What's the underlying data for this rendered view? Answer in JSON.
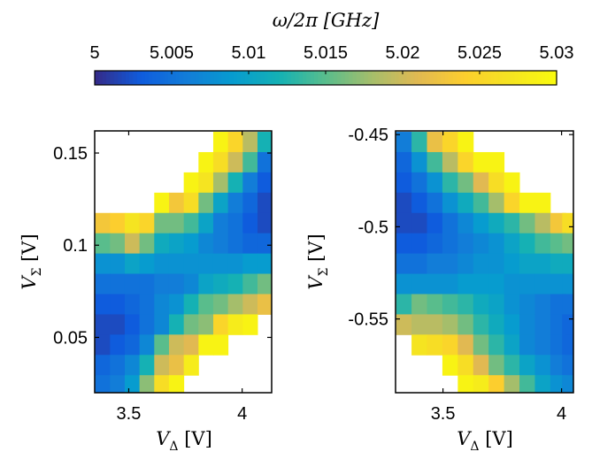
{
  "chart_data": {
    "type": "heatmap",
    "colorbar": {
      "label": "ω/2π [GHz]",
      "ticks": [
        "5",
        "5.005",
        "5.01",
        "5.015",
        "5.02",
        "5.025",
        "5.03"
      ],
      "range": [
        5.0,
        5.03
      ],
      "colormap": "parula"
    },
    "panels": [
      {
        "xlabel": "V_Δ [V]",
        "ylabel": "V_Σ [V]",
        "x_ticks": [
          "3.5",
          "4"
        ],
        "y_ticks": [
          "0.05",
          "0.1",
          "0.15"
        ],
        "x_range": [
          3.35,
          4.13
        ],
        "y_range": [
          0.02,
          0.162
        ],
        "x_centers": [
          3.385,
          3.45,
          3.515,
          3.58,
          3.645,
          3.71,
          3.775,
          3.84,
          3.905,
          3.97,
          4.035,
          4.1
        ],
        "y_centers": [
          0.156,
          0.145,
          0.134,
          0.123,
          0.112,
          0.101,
          0.09,
          0.079,
          0.068,
          0.057,
          0.046,
          0.035,
          0.024
        ],
        "z": [
          [
            null,
            null,
            null,
            null,
            null,
            null,
            null,
            null,
            5.029,
            5.025,
            5.019,
            5.012
          ],
          [
            null,
            null,
            null,
            null,
            null,
            null,
            null,
            5.029,
            5.026,
            5.02,
            5.014,
            5.005
          ],
          [
            null,
            null,
            null,
            null,
            null,
            null,
            5.029,
            5.027,
            5.018,
            5.012,
            5.006,
            5.003
          ],
          [
            null,
            null,
            null,
            null,
            5.029,
            5.023,
            5.026,
            5.016,
            5.01,
            5.006,
            5.004,
            5.002
          ],
          [
            5.023,
            5.024,
            5.027,
            5.025,
            5.016,
            5.016,
            5.014,
            5.01,
            5.006,
            5.005,
            5.003,
            5.002
          ],
          [
            5.015,
            5.016,
            5.02,
            5.016,
            5.011,
            5.01,
            5.009,
            5.007,
            5.006,
            5.005,
            5.004,
            5.004
          ],
          [
            5.008,
            5.008,
            5.01,
            5.009,
            5.008,
            5.008,
            5.008,
            5.008,
            5.008,
            5.008,
            5.009,
            5.009
          ],
          [
            5.005,
            5.005,
            5.005,
            5.005,
            5.006,
            5.006,
            5.007,
            5.01,
            5.011,
            5.012,
            5.014,
            5.016
          ],
          [
            5.003,
            5.003,
            5.004,
            5.005,
            5.007,
            5.008,
            5.012,
            5.015,
            5.016,
            5.018,
            5.02,
            5.022
          ],
          [
            5.002,
            5.002,
            5.003,
            5.005,
            5.007,
            5.012,
            5.016,
            5.017,
            5.025,
            5.028,
            5.029,
            null
          ],
          [
            5.002,
            5.003,
            5.004,
            5.007,
            5.015,
            5.02,
            5.021,
            5.029,
            5.029,
            null,
            null,
            null
          ],
          [
            5.004,
            5.005,
            5.007,
            5.012,
            5.02,
            5.022,
            5.028,
            null,
            null,
            null,
            null,
            null
          ],
          [
            5.005,
            5.006,
            5.009,
            5.017,
            5.026,
            5.029,
            null,
            null,
            null,
            null,
            null,
            null
          ]
        ]
      },
      {
        "xlabel": "V_Δ [V]",
        "ylabel": "V_Σ [V]",
        "x_ticks": [
          "3.5",
          "4"
        ],
        "y_ticks": [
          "-0.45",
          "-0.5",
          "-0.55"
        ],
        "x_range": [
          3.3,
          4.05
        ],
        "y_range": [
          -0.59,
          -0.448
        ],
        "x_centers": [
          3.335,
          3.4,
          3.465,
          3.53,
          3.595,
          3.66,
          3.725,
          3.79,
          3.855,
          3.92,
          3.985,
          4.035
        ],
        "y_centers": [
          -0.454,
          -0.465,
          -0.476,
          -0.487,
          -0.498,
          -0.509,
          -0.52,
          -0.531,
          -0.542,
          -0.553,
          -0.564,
          -0.575,
          -0.586
        ],
        "z": [
          [
            5.006,
            5.013,
            5.022,
            5.025,
            5.029,
            null,
            null,
            null,
            null,
            null,
            null,
            null
          ],
          [
            5.004,
            5.008,
            5.014,
            5.019,
            5.025,
            5.029,
            5.029,
            null,
            null,
            null,
            null,
            null
          ],
          [
            5.003,
            5.005,
            5.008,
            5.013,
            5.016,
            5.021,
            5.026,
            5.029,
            null,
            null,
            null,
            null
          ],
          [
            5.002,
            5.003,
            5.005,
            5.008,
            5.011,
            5.014,
            5.018,
            5.025,
            5.029,
            5.029,
            null,
            null
          ],
          [
            5.002,
            5.002,
            5.003,
            5.005,
            5.007,
            5.009,
            5.011,
            5.013,
            5.016,
            5.019,
            5.023,
            5.026
          ],
          [
            5.003,
            5.003,
            5.004,
            5.005,
            5.006,
            5.007,
            5.008,
            5.01,
            5.012,
            5.014,
            5.015,
            5.016
          ],
          [
            5.005,
            5.005,
            5.006,
            5.006,
            5.007,
            5.008,
            5.008,
            5.009,
            5.01,
            5.01,
            5.011,
            5.011
          ],
          [
            5.008,
            5.008,
            5.008,
            5.008,
            5.009,
            5.009,
            5.009,
            5.008,
            5.008,
            5.008,
            5.008,
            5.008
          ],
          [
            5.013,
            5.016,
            5.015,
            5.014,
            5.013,
            5.011,
            5.01,
            5.008,
            5.007,
            5.006,
            5.005,
            5.005
          ],
          [
            5.02,
            5.019,
            5.019,
            5.018,
            5.016,
            5.013,
            5.011,
            5.009,
            5.007,
            5.006,
            5.005,
            5.004
          ],
          [
            null,
            5.027,
            5.026,
            5.025,
            5.021,
            5.016,
            5.013,
            5.01,
            5.007,
            5.006,
            5.005,
            5.004
          ],
          [
            null,
            null,
            null,
            5.029,
            5.026,
            5.021,
            5.016,
            5.013,
            5.01,
            5.008,
            5.006,
            5.005
          ],
          [
            null,
            null,
            null,
            null,
            5.029,
            5.028,
            5.024,
            5.018,
            5.014,
            5.01,
            5.008,
            5.007
          ]
        ]
      }
    ]
  }
}
